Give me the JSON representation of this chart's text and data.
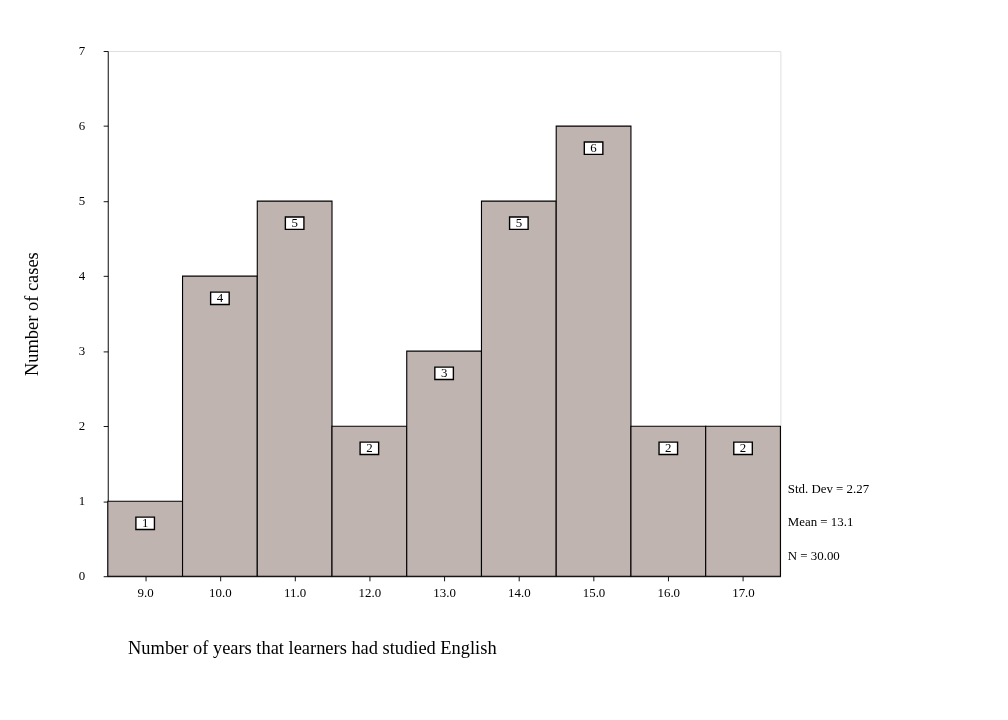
{
  "chart_data": {
    "type": "histogram",
    "xlabel": "Number of years that learners had studied English",
    "ylabel": "Number of cases",
    "bins": [
      8.5,
      9.5,
      10.5,
      11.5,
      12.5,
      13.5,
      14.5,
      15.5,
      16.5,
      17.5
    ],
    "values": [
      1,
      4,
      5,
      2,
      3,
      5,
      6,
      2,
      2
    ],
    "color": "#bfb4b0",
    "data_labels": true,
    "xlim": [
      8.5,
      17.5
    ],
    "xticks": [
      {
        "value": 9,
        "label": "9.0"
      },
      {
        "value": 10,
        "label": "10.0"
      },
      {
        "value": 11,
        "label": "11.0"
      },
      {
        "value": 12,
        "label": "12.0"
      },
      {
        "value": 13,
        "label": "13.0"
      },
      {
        "value": 14,
        "label": "14.0"
      },
      {
        "value": 15,
        "label": "15.0"
      },
      {
        "value": 16,
        "label": "16.0"
      },
      {
        "value": 17,
        "label": "17.0"
      }
    ],
    "ylim": [
      0,
      7
    ],
    "yticks": [
      0,
      1,
      2,
      3,
      4,
      5,
      6,
      7
    ],
    "grid": false,
    "annotations": [
      "Std. Dev = 2.27",
      "Mean = 13.1",
      "N = 30.00"
    ]
  }
}
